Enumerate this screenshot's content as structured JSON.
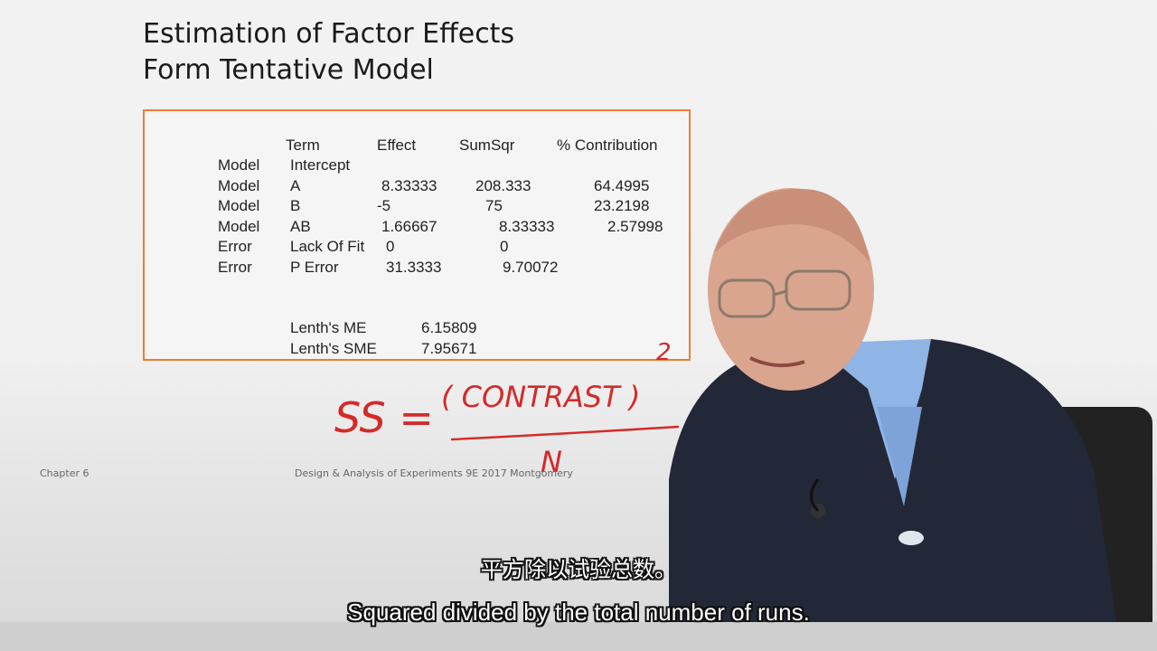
{
  "slide": {
    "title_line1": "Estimation of Factor Effects",
    "title_line2": "Form Tentative Model",
    "footer_left": "Chapter 6",
    "footer_center": "Design & Analysis of Experiments 9E 2017 Montgomery"
  },
  "effects_table": {
    "headers": {
      "term": "Term",
      "effect": "Effect",
      "sumsqr": "SumSqr",
      "contribution": "% Contribution"
    },
    "rows": [
      {
        "type": "Model",
        "term": "Intercept",
        "effect": "",
        "sumsqr": "",
        "contribution": ""
      },
      {
        "type": "Model",
        "term": "A",
        "effect": "8.33333",
        "sumsqr": "208.333",
        "contribution": "64.4995"
      },
      {
        "type": "Model",
        "term": "B",
        "effect": "-5",
        "sumsqr": "75",
        "contribution": "23.2198"
      },
      {
        "type": "Model",
        "term": "AB",
        "effect": "1.66667",
        "sumsqr": "8.33333",
        "contribution": "2.57998"
      },
      {
        "type": "Error",
        "term": "Lack Of Fit",
        "effect": "0",
        "sumsqr": "0",
        "contribution": ""
      },
      {
        "type": "Error",
        "term": "P Error",
        "effect": "31.3333",
        "sumsqr": "9.70072",
        "contribution": ""
      }
    ],
    "lenth": [
      {
        "label": "Lenth's ME",
        "value": "6.15809"
      },
      {
        "label": "Lenth's SME",
        "value": "7.95671"
      }
    ]
  },
  "annotation": {
    "lhs": "SS =",
    "numerator": "( CONTRAST )",
    "exponent": "2",
    "denominator": "N",
    "ink_color": "#d42a2a"
  },
  "subtitles": {
    "chinese": "平方除以试验总数。",
    "english": "Squared divided by the total number of runs."
  },
  "colors": {
    "box_border": "#ed7d31"
  }
}
